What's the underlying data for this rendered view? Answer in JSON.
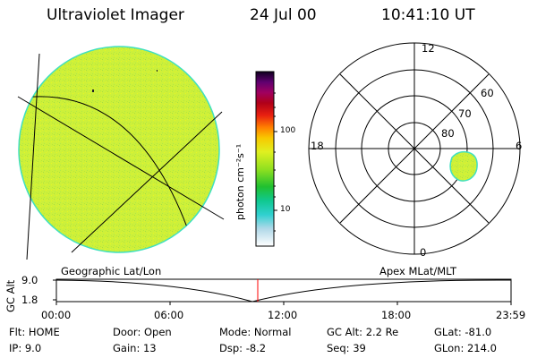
{
  "header": {
    "title": "Ultraviolet Imager",
    "date": "24 Jul 00",
    "time": "10:41:10 UT"
  },
  "colorbar": {
    "unit_label": "photon cm⁻²s⁻¹",
    "ticks": [
      "100",
      "10"
    ]
  },
  "polar_plot": {
    "mlt_labels": {
      "top": "12",
      "left": "18",
      "right": "6",
      "bottom": "0"
    },
    "lat_labels": [
      "60",
      "70",
      "80"
    ]
  },
  "altitude_strip": {
    "left_label": "Geographic Lat/Lon",
    "right_label": "Apex MLat/MLT",
    "axis_label": "GC Alt",
    "y_ticks": [
      "9.0",
      "1.8"
    ],
    "x_ticks": [
      "00:00",
      "06:00",
      "12:00",
      "18:00",
      "23:59"
    ]
  },
  "status": {
    "row1": [
      {
        "label": "Flt:",
        "value": "HOME"
      },
      {
        "label": "Door:",
        "value": "Open"
      },
      {
        "label": "Mode:",
        "value": "Normal"
      },
      {
        "label": "GC Alt:",
        "value": "2.2 Re"
      },
      {
        "label": "GLat:",
        "value": "-81.0"
      }
    ],
    "row2": [
      {
        "label": "IP:",
        "value": "9.0"
      },
      {
        "label": "Gain:",
        "value": "13"
      },
      {
        "label": "Dsp:",
        "value": "-8.2"
      },
      {
        "label": "Seq:",
        "value": "39"
      },
      {
        "label": "GLon:",
        "value": "214.0"
      }
    ]
  },
  "colors": {
    "image_fill": "#cdf03a",
    "image_edge": "#40e0c0",
    "marker": "#ff0000"
  }
}
